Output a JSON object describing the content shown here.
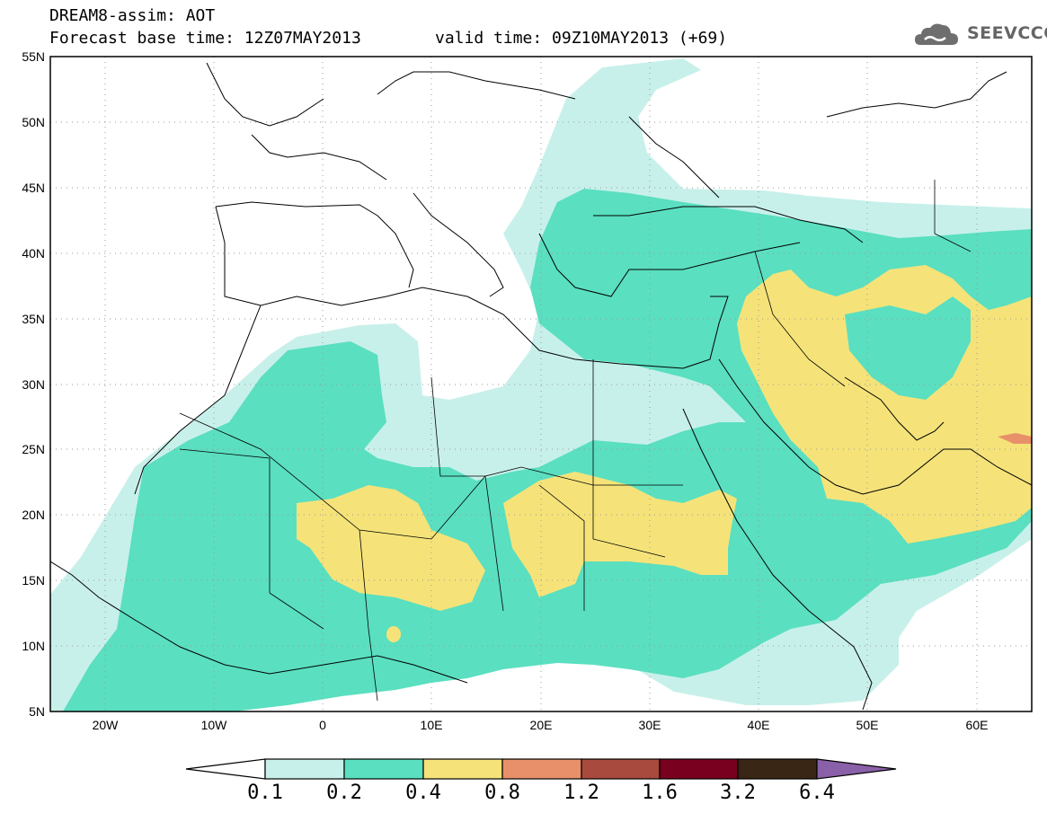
{
  "header": {
    "model_title": "DREAM8-assim: AOT",
    "base_time": "Forecast base time: 12Z07MAY2013",
    "valid_time": "valid time: 09Z10MAY2013 (+69)",
    "logo_text": "SEEVCCC",
    "logo_icon": "cloud-icon"
  },
  "map": {
    "lon_range": [
      -25,
      65
    ],
    "lat_range": [
      5,
      55
    ],
    "graticule_dotted": true,
    "lat_labels": [
      "55N",
      "50N",
      "45N",
      "40N",
      "35N",
      "30N",
      "25N",
      "20N",
      "15N",
      "10N",
      "5N"
    ],
    "lon_labels": [
      "20W",
      "10W",
      "0",
      "10E",
      "20E",
      "30E",
      "40E",
      "50E",
      "60E"
    ]
  },
  "legend": {
    "levels": [
      "0.1",
      "0.2",
      "0.4",
      "0.8",
      "1.2",
      "1.6",
      "3.2",
      "6.4"
    ],
    "colors": [
      "#ffffff",
      "#c8f0ea",
      "#5adfc0",
      "#f5e37a",
      "#e8906a",
      "#a84a3e",
      "#7a0020",
      "#3a2614",
      "#8a60a8"
    ],
    "extend": "both"
  }
}
